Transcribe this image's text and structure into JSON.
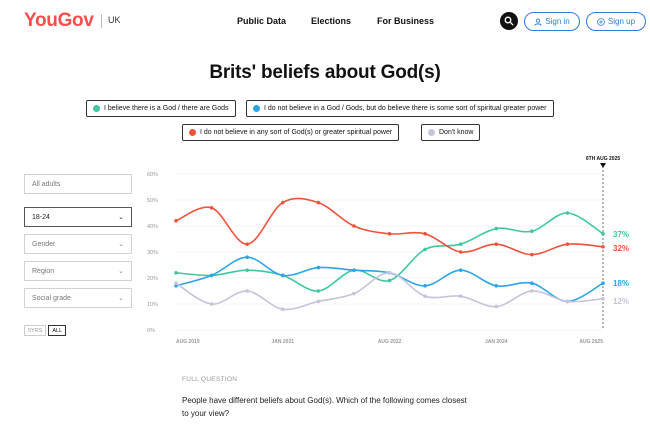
{
  "header": {
    "logo": "YouGov",
    "region": "UK",
    "nav": [
      "Public Data",
      "Elections",
      "For Business"
    ],
    "sign_in": "Sign in",
    "sign_up": "Sign up"
  },
  "colors": {
    "brand": "#ff4c4c",
    "accent": "#2d7de0",
    "believe_god": "#3fc7a0",
    "spiritual": "#2aa6e8",
    "no_god": "#f0533b",
    "dont_know": "#c4c4dc"
  },
  "icons": [
    "search-icon",
    "user-icon",
    "plus-icon",
    "chevron-down-icon"
  ],
  "filters": {
    "all_adults": "All adults",
    "age": "18-24",
    "gender": "Gender",
    "region": "Region",
    "social_grade": "Social grade",
    "range_5yrs": "5YRS",
    "range_all": "ALL"
  },
  "question": {
    "label": "FULL QUESTION",
    "text": "People have different beliefs about God(s). Which of the following comes closest to your view?"
  },
  "chart_data": {
    "type": "line",
    "title": "Brits' beliefs about God(s)",
    "x": [
      "2019-08",
      "2020-02",
      "2020-08",
      "2021-02",
      "2021-08",
      "2022-02",
      "2022-08",
      "2023-02",
      "2023-08",
      "2024-02",
      "2024-08",
      "2025-02",
      "2025-08"
    ],
    "x_ticks": [
      "AUG 2019",
      "JAN 2021",
      "AUG 2022",
      "JAN 2024",
      "AUG 2025"
    ],
    "ylim": [
      0,
      60
    ],
    "y_ticks": [
      "0%",
      "10%",
      "20%",
      "30%",
      "40%",
      "50%",
      "60%"
    ],
    "grid": true,
    "legend_position": "top",
    "marker": "6TH AUG 2025",
    "series": [
      {
        "name": "I believe there is a God / there are Gods",
        "color": "#3fc7a0",
        "values": [
          22,
          21,
          23,
          21,
          15,
          23,
          19,
          31,
          33,
          39,
          38,
          45,
          37
        ],
        "end_label": "37%"
      },
      {
        "name": "I do not believe in a God / Gods, but do believe there is some sort of spiritual greater power",
        "color": "#2aa6e8",
        "values": [
          17,
          21,
          28,
          21,
          24,
          23,
          22,
          17,
          23,
          17,
          18,
          11,
          18
        ],
        "end_label": "18%"
      },
      {
        "name": "I do not believe in any sort of God(s) or greater spiritual power",
        "color": "#f0533b",
        "values": [
          42,
          47,
          33,
          49,
          49,
          40,
          37,
          37,
          30,
          33,
          29,
          33,
          32
        ],
        "end_label": "32%"
      },
      {
        "name": "Don't know",
        "color": "#c4c4dc",
        "values": [
          18,
          10,
          15,
          8,
          11,
          14,
          22,
          13,
          13,
          9,
          15,
          11,
          12
        ],
        "end_label": "12%"
      }
    ]
  }
}
